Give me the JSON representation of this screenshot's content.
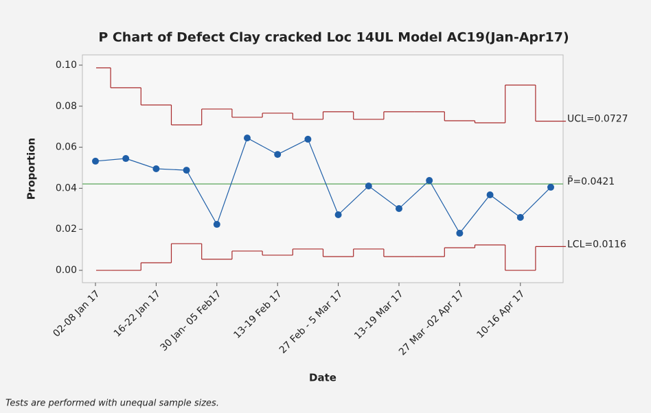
{
  "chart_data": {
    "type": "p_chart",
    "title": "P Chart of Defect Clay cracked Loc 14UL Model AC19(Jan-Apr17)",
    "x_label": "Date",
    "y_label": "Proportion",
    "footnote": "Tests are performed with unequal sample sizes.",
    "categories": [
      "02-08 Jan 17",
      null,
      "16-22 Jan 17",
      null,
      "30 Jan- 05 Feb17",
      null,
      "13-19 Feb 17",
      null,
      "27 Feb - 5 Mar 17",
      null,
      "13-19 Mar 17",
      null,
      "27 Mar -02 Apr 17",
      null,
      "10-16 Apr 17",
      null
    ],
    "series": [
      {
        "name": "Proportion",
        "color": "#1f5fa8",
        "values": [
          0.0532,
          0.0545,
          0.0495,
          0.0488,
          0.0224,
          0.0645,
          0.0565,
          0.0639,
          0.0271,
          0.0411,
          0.0301,
          0.0438,
          0.0181,
          0.0368,
          0.0258,
          0.0405
        ]
      },
      {
        "name": "UCL",
        "color": "#a8282a",
        "values": [
          0.0987,
          0.089,
          0.0806,
          0.0709,
          0.0786,
          0.0746,
          0.0766,
          0.0736,
          0.0773,
          0.0736,
          0.0773,
          0.0773,
          0.0729,
          0.0719,
          0.0903,
          0.0727
        ]
      },
      {
        "name": "LCL",
        "color": "#a8282a",
        "values": [
          0,
          0,
          0.0037,
          0.013,
          0.0054,
          0.0094,
          0.0074,
          0.0104,
          0.0067,
          0.0104,
          0.0067,
          0.0067,
          0.011,
          0.0124,
          0,
          0.0116
        ]
      }
    ],
    "center": {
      "value": 0.0421,
      "color": "#5aa55a"
    },
    "limit_labels": [
      "UCL=0.0727",
      "P̄=0.0421",
      "LCL=0.0116"
    ],
    "ylim": [
      -0.006,
      0.105
    ],
    "yticks": [
      {
        "value": 0,
        "label": "0.00"
      },
      0.02,
      0.04,
      0.06,
      0.08,
      {
        "value": 0.1,
        "label": "0.10"
      }
    ]
  }
}
